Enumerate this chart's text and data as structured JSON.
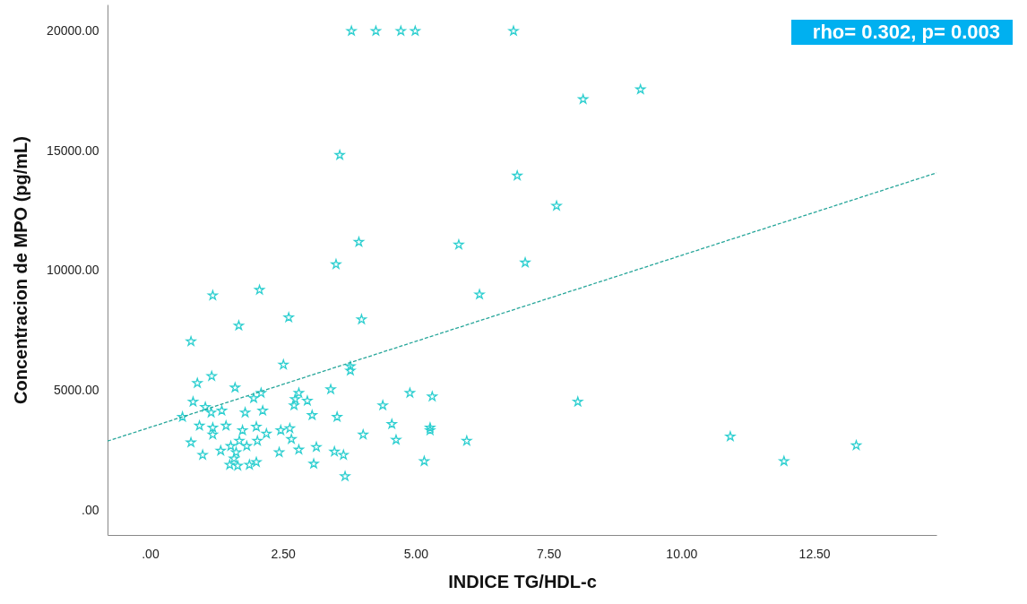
{
  "chart_data": {
    "type": "scatter",
    "xlabel": "INDICE TG/HDL-c",
    "ylabel": "Concentracion de MPO (pg/mL)",
    "xlim": [
      -0.8,
      14.8
    ],
    "ylim": [
      -1040,
      21110
    ],
    "xticks": [
      {
        "value": 0,
        "label": ".00"
      },
      {
        "value": 2.5,
        "label": "2.50"
      },
      {
        "value": 5,
        "label": "5.00"
      },
      {
        "value": 7.5,
        "label": "7.50"
      },
      {
        "value": 10,
        "label": "10.00"
      },
      {
        "value": 12.5,
        "label": "12.50"
      }
    ],
    "yticks": [
      {
        "value": 0,
        "label": ".00"
      },
      {
        "value": 5000,
        "label": "5000.00"
      },
      {
        "value": 10000,
        "label": "10000.00"
      },
      {
        "value": 15000,
        "label": "15000.00"
      },
      {
        "value": 20000,
        "label": "20000.00"
      }
    ],
    "grid": false,
    "annotations": [
      "rho= 0.302, p= 0.003"
    ],
    "series": [
      {
        "color": "#2ecfd0",
        "marker": "star",
        "x": [
          3.79,
          4.25,
          4.72,
          4.99,
          6.84,
          8.15,
          9.23,
          3.57,
          6.91,
          7.65,
          3.93,
          5.81,
          3.5,
          7.06,
          1.18,
          2.06,
          6.2,
          2.61,
          3.98,
          1.67,
          0.77,
          2.51,
          3.77,
          3.77,
          1.16,
          0.89,
          1.6,
          3.4,
          4.89,
          5.31,
          8.05,
          2.09,
          1.95,
          2.8,
          2.73,
          2.96,
          2.71,
          3.05,
          3.52,
          4.38,
          0.81,
          1.04,
          1.15,
          1.35,
          1.79,
          2.12,
          0.61,
          0.93,
          1.18,
          1.18,
          1.43,
          1.74,
          2.0,
          2.19,
          2.46,
          2.63,
          2.66,
          4.55,
          4.63,
          5.27,
          5.27,
          5.96,
          4.01,
          10.92,
          13.29,
          0.77,
          0.99,
          1.33,
          1.52,
          1.68,
          1.82,
          1.62,
          2.02,
          2.43,
          2.8,
          3.13,
          3.47,
          3.64,
          1.5,
          1.65,
          1.87,
          2.0,
          3.08,
          1.58,
          3.67,
          5.16,
          11.93
        ],
        "values": [
          20000,
          20000,
          20000,
          20000,
          20000,
          17150,
          17560,
          14820,
          13960,
          12700,
          11190,
          11080,
          10260,
          10330,
          8960,
          9190,
          9000,
          8040,
          7960,
          7700,
          7040,
          6070,
          6000,
          5820,
          5590,
          5300,
          5110,
          5040,
          4890,
          4740,
          4520,
          4890,
          4670,
          4890,
          4630,
          4560,
          4370,
          3960,
          3890,
          4370,
          4520,
          4300,
          4070,
          4150,
          4070,
          4150,
          3890,
          3520,
          3440,
          3150,
          3520,
          3330,
          3480,
          3190,
          3330,
          3410,
          2960,
          3590,
          2930,
          3440,
          3330,
          2890,
          3150,
          3070,
          2700,
          2820,
          2300,
          2480,
          2670,
          2890,
          2670,
          2410,
          2890,
          2410,
          2520,
          2630,
          2440,
          2300,
          1890,
          1850,
          1890,
          2000,
          1930,
          2150,
          1410,
          2040,
          2040
        ]
      },
      {
        "type": "line",
        "line_style": "dashed",
        "color": "#27a69a",
        "x": [
          -0.8,
          14.8
        ],
        "values": [
          2880,
          14080
        ]
      }
    ]
  }
}
